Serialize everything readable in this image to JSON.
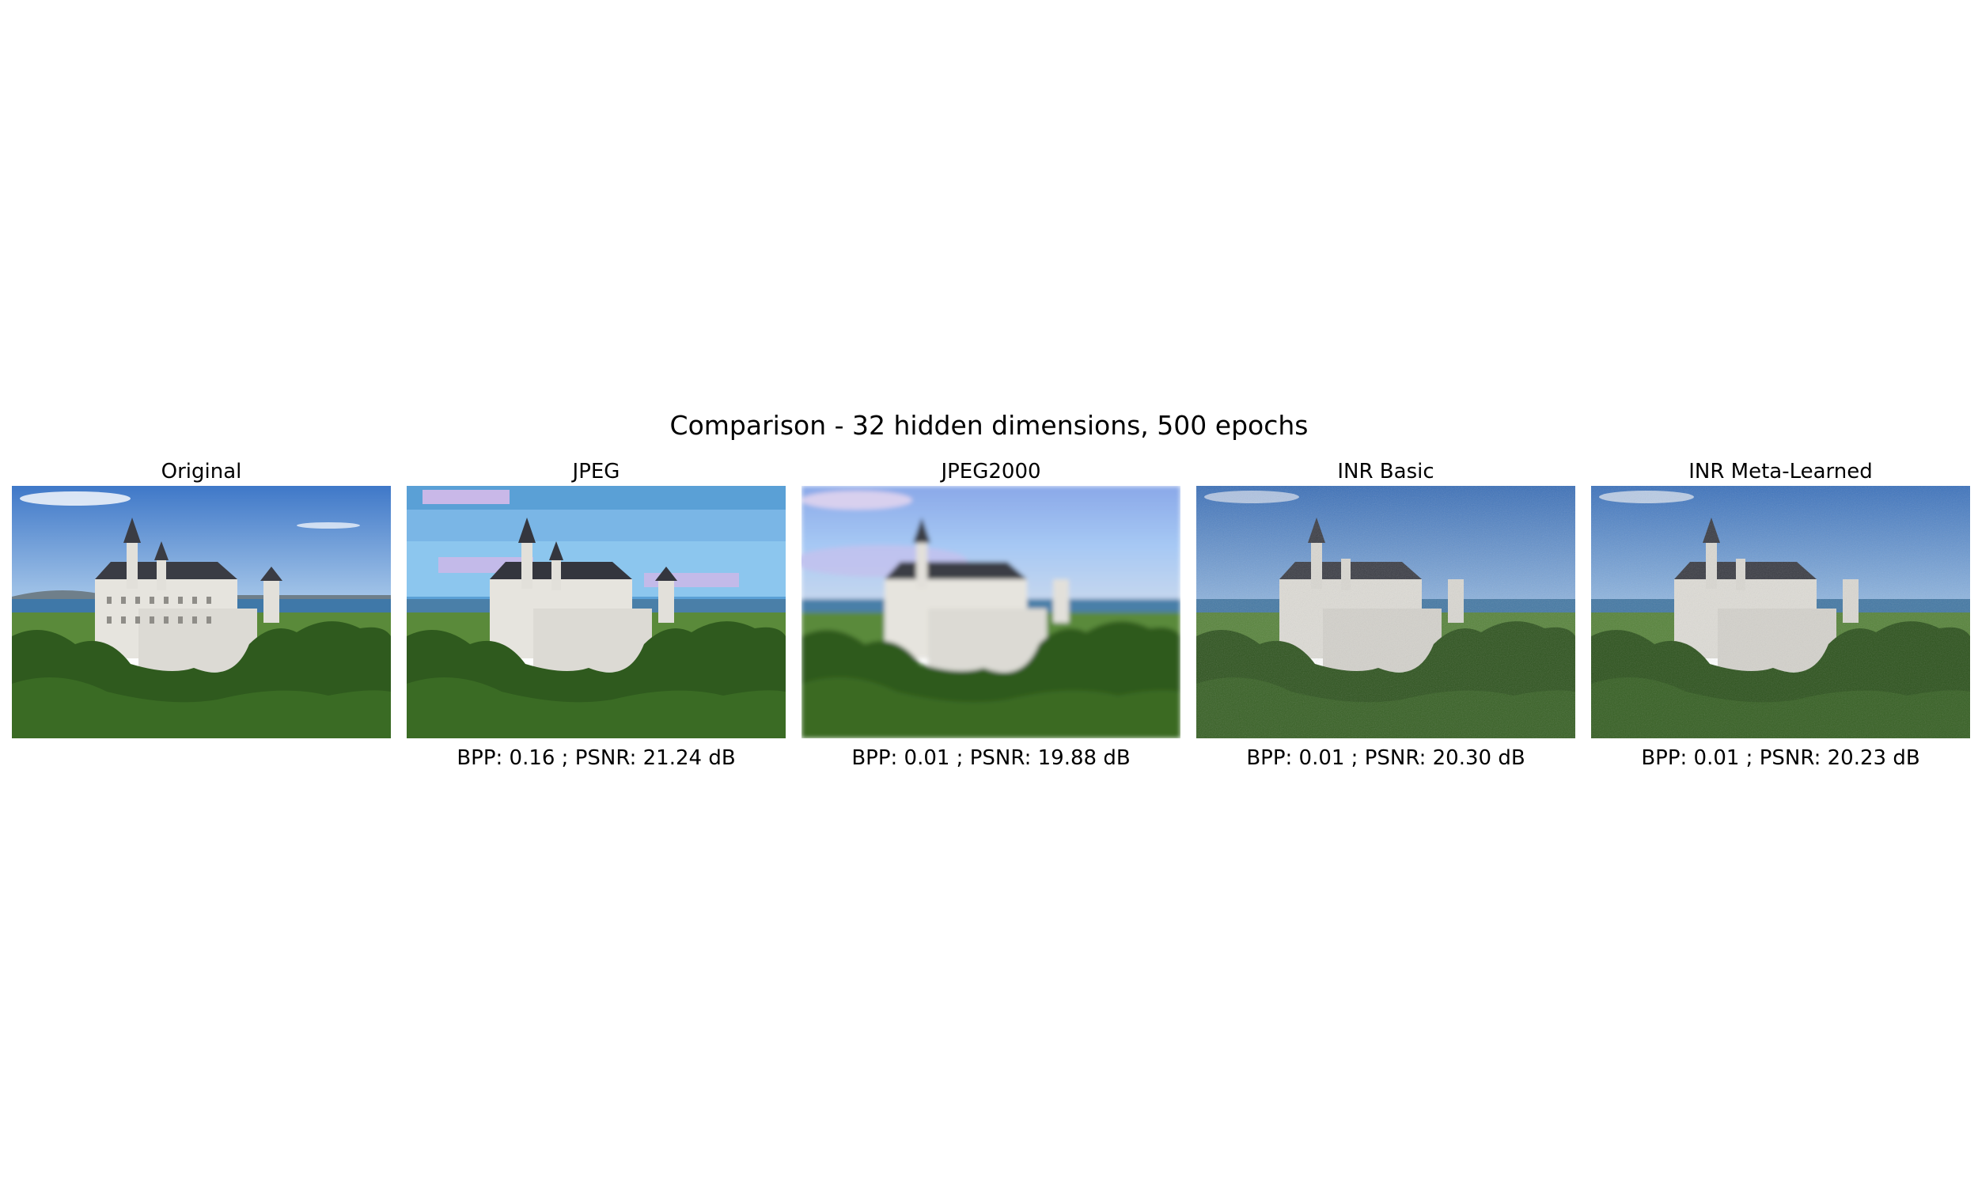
{
  "figure": {
    "title": "Comparison - 32 hidden dimensions, 500 epochs",
    "panels": [
      {
        "title": "Original",
        "caption": "",
        "variant": "original"
      },
      {
        "title": "JPEG",
        "caption": "BPP: 0.16 ; PSNR: 21.24 dB",
        "variant": "jpeg"
      },
      {
        "title": "JPEG2000",
        "caption": "BPP: 0.01 ; PSNR: 19.88 dB",
        "variant": "jpeg2000"
      },
      {
        "title": "INR Basic",
        "caption": "BPP: 0.01 ; PSNR: 20.30 dB",
        "variant": "inr"
      },
      {
        "title": "INR Meta-Learned",
        "caption": "BPP: 0.01 ; PSNR: 20.23 dB",
        "variant": "inr"
      }
    ]
  },
  "colors": {
    "sky_top": "#3f78c8",
    "sky_bottom": "#a9c9ea",
    "lake": "#3f78a8",
    "fields": "#5a8a3a",
    "forest": "#2f5a1e",
    "castle": "#e6e4de",
    "roof": "#3a3c44",
    "jpeg_band_1": "#5aa0d6",
    "jpeg_band_2": "#8cc6ee",
    "jpeg_band_3": "#c9b8e8"
  }
}
